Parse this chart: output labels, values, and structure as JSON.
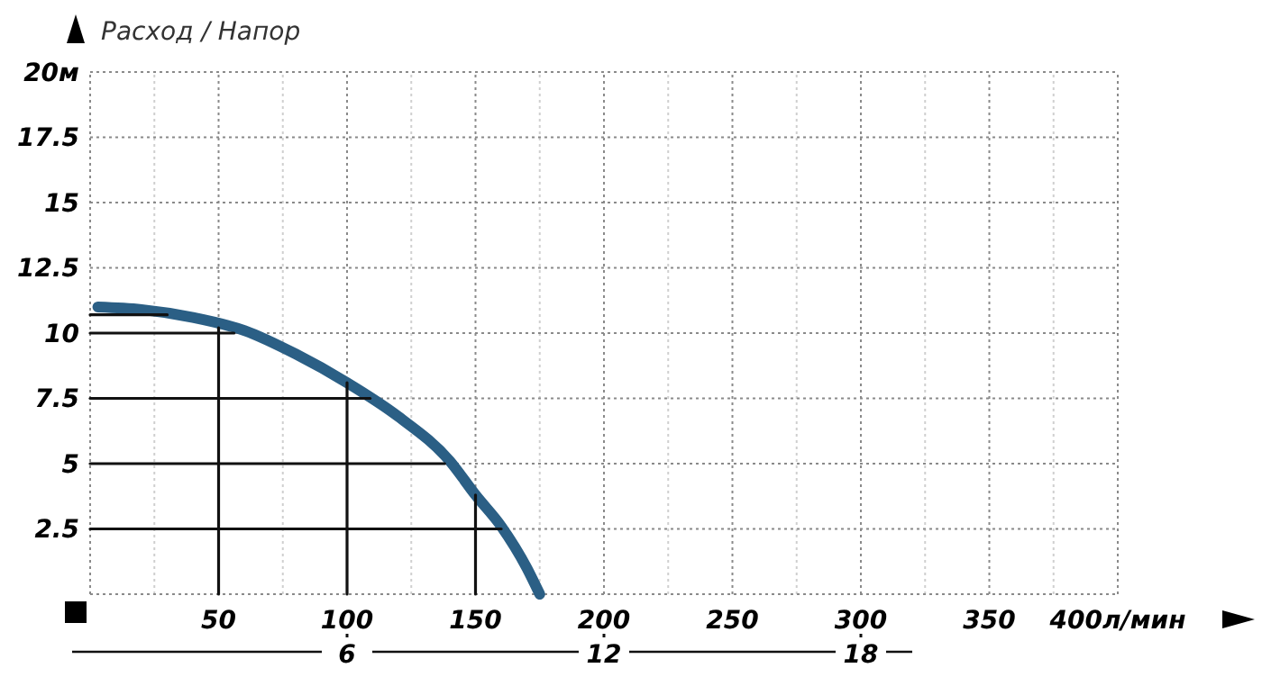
{
  "chart_data": {
    "type": "line",
    "title": "Расход / Напор",
    "xlim": [
      0,
      400
    ],
    "ylim": [
      0,
      20
    ],
    "xticks": [
      {
        "value": 25,
        "label": null
      },
      50,
      {
        "value": 75,
        "label": null
      },
      100,
      {
        "value": 125,
        "label": null
      },
      150,
      {
        "value": 175,
        "label": null
      },
      200,
      {
        "value": 225,
        "label": null
      },
      250,
      {
        "value": 275,
        "label": null
      },
      300,
      {
        "value": 325,
        "label": null
      },
      350,
      {
        "value": 375,
        "label": null
      },
      {
        "value": 400,
        "label": "400л/мин"
      }
    ],
    "yticks": [
      2.5,
      5,
      7.5,
      10,
      12.5,
      15,
      17.5,
      {
        "value": 20,
        "label": "20м"
      }
    ],
    "x2lim": [
      0,
      24
    ],
    "x2ticks": [
      6,
      12,
      18
    ],
    "grid": true,
    "marker": "none",
    "line_style": "solid",
    "series": [
      {
        "color": "#2b5f85",
        "x": [
          3,
          20,
          40,
          60,
          80,
          100,
          120,
          140,
          150,
          160,
          170,
          175
        ],
        "values": [
          11,
          10.9,
          10.6,
          10.1,
          9.2,
          8.1,
          6.8,
          5.1,
          3.8,
          2.6,
          1.0,
          0
        ]
      },
      {
        "color": "#111111",
        "x": [
          0,
          30
        ],
        "values": [
          10.7,
          10.7
        ]
      },
      {
        "color": "#111111",
        "x": [
          0,
          56
        ],
        "values": [
          10,
          10
        ]
      },
      {
        "color": "#111111",
        "x": [
          0,
          109
        ],
        "values": [
          7.5,
          7.5
        ]
      },
      {
        "color": "#111111",
        "x": [
          0,
          138
        ],
        "values": [
          5,
          5
        ]
      },
      {
        "color": "#111111",
        "x": [
          0,
          160
        ],
        "values": [
          2.5,
          2.5
        ]
      },
      {
        "color": "#111111",
        "x": [
          50,
          50
        ],
        "values": [
          0,
          10.2
        ]
      },
      {
        "color": "#111111",
        "x": [
          100,
          100
        ],
        "values": [
          0,
          8.1
        ]
      },
      {
        "color": "#111111",
        "x": [
          150,
          150
        ],
        "values": [
          0,
          3.8
        ]
      }
    ]
  }
}
